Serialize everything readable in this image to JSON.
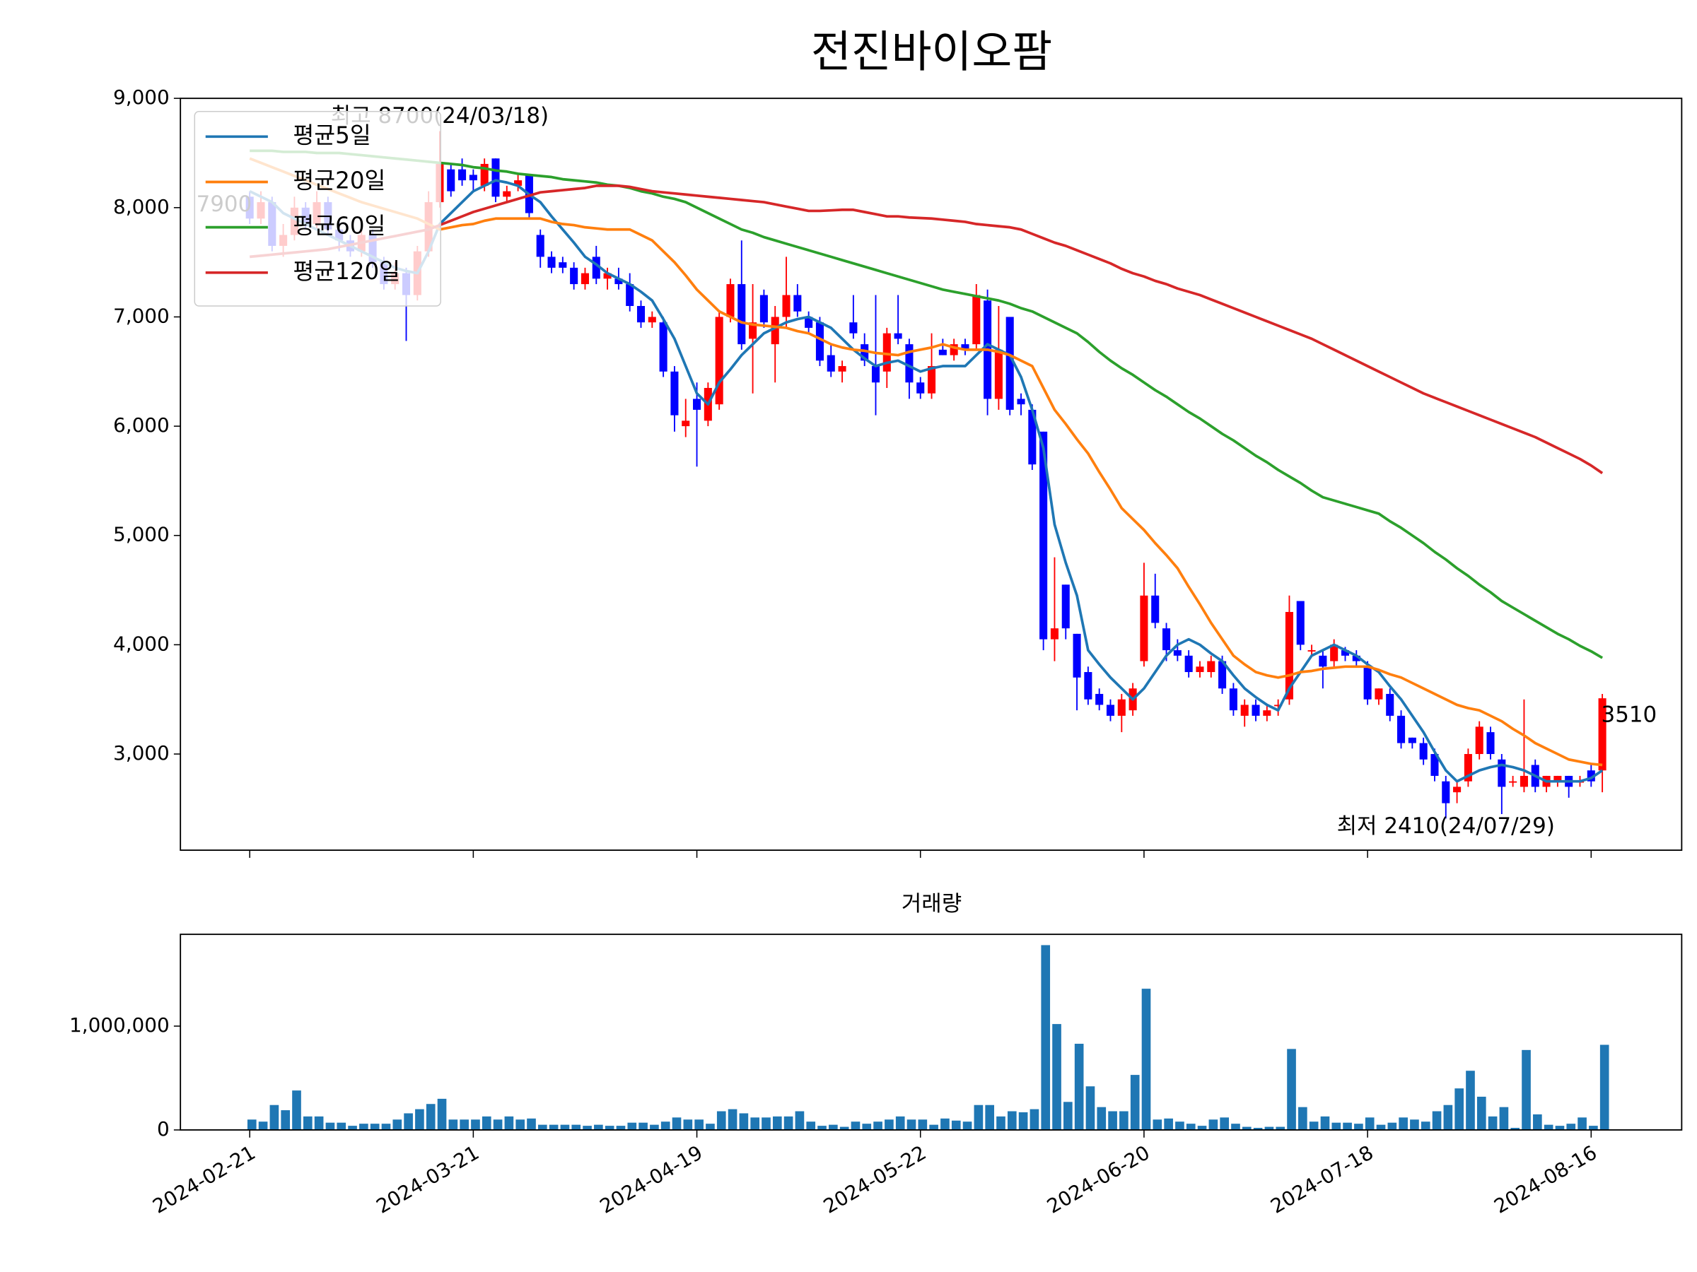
{
  "chart_data": {
    "type": "candlestick",
    "title": "전진바이오팜",
    "categories": [
      "2024-02-21",
      null,
      null,
      null,
      null,
      null,
      null,
      null,
      null,
      null,
      null,
      null,
      null,
      null,
      null,
      null,
      null,
      null,
      null,
      null,
      "2024-03-21",
      null,
      null,
      null,
      null,
      null,
      null,
      null,
      null,
      null,
      null,
      null,
      null,
      null,
      null,
      null,
      null,
      null,
      null,
      null,
      "2024-04-19",
      null,
      null,
      null,
      null,
      null,
      null,
      null,
      null,
      null,
      null,
      null,
      null,
      null,
      null,
      null,
      null,
      null,
      null,
      null,
      "2024-05-22",
      null,
      null,
      null,
      null,
      null,
      null,
      null,
      null,
      null,
      null,
      null,
      null,
      null,
      null,
      null,
      null,
      null,
      null,
      null,
      "2024-06-20",
      null,
      null,
      null,
      null,
      null,
      null,
      null,
      null,
      null,
      null,
      null,
      null,
      null,
      null,
      null,
      null,
      null,
      null,
      null,
      "2024-07-18",
      null,
      null,
      null,
      null,
      null,
      null,
      null,
      null,
      null,
      null,
      null,
      null,
      null,
      null,
      null,
      null,
      null,
      null,
      null,
      "2024-08-16",
      null
    ],
    "open": [
      8100,
      7900,
      8050,
      7650,
      7750,
      8000,
      7850,
      8050,
      7800,
      7700,
      7600,
      7750,
      7500,
      7300,
      7400,
      7200,
      7600,
      8050,
      8350,
      8350,
      8300,
      8200,
      8450,
      8100,
      8200,
      8300,
      7750,
      7550,
      7500,
      7450,
      7300,
      7550,
      7350,
      7350,
      7300,
      7100,
      6950,
      6950,
      6500,
      6000,
      6250,
      6050,
      6200,
      7000,
      7300,
      6800,
      7200,
      6750,
      7000,
      7200,
      7000,
      6950,
      6650,
      6500,
      6950,
      6750,
      6550,
      6500,
      6850,
      6750,
      6400,
      6300,
      6700,
      6650,
      6750,
      6750,
      7150,
      6250,
      7000,
      6250,
      6150,
      5950,
      4050,
      4550,
      4100,
      3750,
      3550,
      3450,
      3350,
      3400,
      3850,
      4450,
      4150,
      3950,
      3900,
      3750,
      3750,
      3850,
      3600,
      3350,
      3450,
      3350,
      3450,
      3500,
      4400,
      3950,
      3900,
      3850,
      3950,
      3900,
      3800,
      3500,
      3550,
      3350,
      3150,
      3100,
      3000,
      2750,
      2650,
      2750,
      3000,
      3200,
      2950,
      2750,
      2700,
      2900,
      2700,
      2750,
      2800,
      2750,
      2850,
      2850
    ],
    "high": [
      8150,
      8150,
      8100,
      7850,
      8100,
      8050,
      8150,
      8100,
      7900,
      7750,
      7850,
      7800,
      7550,
      7500,
      7450,
      7650,
      8150,
      8700,
      8400,
      8450,
      8350,
      8450,
      8450,
      8200,
      8300,
      8300,
      7800,
      7600,
      7550,
      7500,
      7450,
      7650,
      7450,
      7450,
      7400,
      7150,
      7050,
      7000,
      6550,
      6250,
      6400,
      6400,
      7050,
      7350,
      7700,
      7300,
      7250,
      7100,
      7550,
      7300,
      7050,
      7000,
      6750,
      6600,
      7200,
      6850,
      7200,
      6900,
      7200,
      6800,
      6450,
      6850,
      6800,
      6800,
      6800,
      7300,
      7250,
      7100,
      7000,
      6300,
      6200,
      5950,
      4800,
      4550,
      4100,
      3800,
      3600,
      3500,
      3550,
      3650,
      4750,
      4650,
      4200,
      4050,
      3950,
      3850,
      3900,
      3900,
      3650,
      3500,
      3500,
      3450,
      3500,
      4450,
      4400,
      4000,
      3950,
      4050,
      3980,
      3950,
      3850,
      3600,
      3600,
      3400,
      3150,
      3150,
      3050,
      2800,
      2750,
      3050,
      3300,
      3250,
      3000,
      2800,
      3500,
      2950,
      2800,
      2800,
      2800,
      2800,
      2900,
      3550
    ],
    "low": [
      7850,
      7850,
      7600,
      7550,
      7700,
      7800,
      7800,
      7750,
      7600,
      7550,
      7550,
      7450,
      7250,
      7250,
      6780,
      7150,
      7550,
      8000,
      8100,
      8200,
      8150,
      8150,
      8050,
      8050,
      8150,
      7900,
      7450,
      7400,
      7400,
      7250,
      7250,
      7300,
      7250,
      7250,
      7050,
      6900,
      6900,
      6450,
      5950,
      5900,
      5630,
      6000,
      6150,
      6950,
      6700,
      6300,
      6900,
      6400,
      6900,
      7000,
      6850,
      6550,
      6450,
      6400,
      6800,
      6550,
      6100,
      6350,
      6750,
      6250,
      6250,
      6250,
      6650,
      6600,
      6650,
      6700,
      6100,
      6150,
      6100,
      6100,
      5600,
      3950,
      3850,
      4050,
      3400,
      3450,
      3400,
      3300,
      3200,
      3350,
      3800,
      4150,
      3850,
      3850,
      3700,
      3700,
      3700,
      3550,
      3350,
      3250,
      3300,
      3300,
      3350,
      3450,
      3950,
      3900,
      3600,
      3800,
      3850,
      3800,
      3450,
      3450,
      3300,
      3050,
      3050,
      2900,
      2750,
      2410,
      2550,
      2700,
      2950,
      2950,
      2450,
      2700,
      2650,
      2650,
      2650,
      2700,
      2600,
      2700,
      2700,
      2650
    ],
    "close": [
      7900,
      8050,
      7650,
      7750,
      8000,
      7850,
      8050,
      7800,
      7700,
      7600,
      7750,
      7500,
      7300,
      7400,
      7200,
      7600,
      8050,
      8400,
      8150,
      8250,
      8250,
      8400,
      8100,
      8150,
      8250,
      7950,
      7550,
      7450,
      7450,
      7300,
      7400,
      7350,
      7400,
      7300,
      7100,
      6950,
      7000,
      6500,
      6100,
      6050,
      6150,
      6350,
      7000,
      7300,
      6750,
      6950,
      6950,
      7000,
      7200,
      7050,
      6900,
      6600,
      6500,
      6550,
      6850,
      6600,
      6400,
      6850,
      6800,
      6400,
      6300,
      6550,
      6650,
      6750,
      6700,
      7200,
      6250,
      6700,
      6150,
      6200,
      5650,
      4050,
      4150,
      4150,
      3700,
      3500,
      3450,
      3350,
      3500,
      3600,
      4450,
      4200,
      3950,
      3900,
      3750,
      3800,
      3850,
      3600,
      3400,
      3450,
      3350,
      3400,
      3450,
      4300,
      4000,
      3950,
      3800,
      4000,
      3900,
      3850,
      3500,
      3600,
      3350,
      3100,
      3100,
      2950,
      2800,
      2550,
      2700,
      3000,
      3250,
      3000,
      2700,
      2750,
      2800,
      2700,
      2800,
      2800,
      2700,
      2750,
      2750,
      3510
    ],
    "up_color": "#ff0000",
    "down_color": "#0000ff",
    "series": [
      {
        "name": "평균5일",
        "color": "#1f77b4",
        "values": [
          8150,
          8100,
          8050,
          7950,
          7900,
          7850,
          7800,
          7750,
          7700,
          7650,
          7600,
          7550,
          7500,
          7450,
          7420,
          7400,
          7600,
          7850,
          7950,
          8050,
          8150,
          8200,
          8250,
          8230,
          8200,
          8120,
          8050,
          7920,
          7800,
          7680,
          7550,
          7480,
          7400,
          7350,
          7300,
          7230,
          7150,
          6980,
          6800,
          6550,
          6300,
          6200,
          6400,
          6520,
          6650,
          6750,
          6850,
          6900,
          6950,
          6980,
          7000,
          6950,
          6900,
          6800,
          6700,
          6620,
          6550,
          6580,
          6600,
          6550,
          6500,
          6530,
          6550,
          6550,
          6550,
          6650,
          6750,
          6700,
          6650,
          6450,
          6150,
          5800,
          5100,
          4750,
          4450,
          3950,
          3820,
          3700,
          3600,
          3500,
          3600,
          3750,
          3900,
          4000,
          4050,
          4000,
          3920,
          3850,
          3720,
          3600,
          3520,
          3450,
          3400,
          3600,
          3750,
          3900,
          3950,
          4000,
          3950,
          3900,
          3820,
          3750,
          3620,
          3500,
          3350,
          3200,
          3020,
          2850,
          2750,
          2800,
          2850,
          2880,
          2900,
          2880,
          2850,
          2800,
          2750,
          2750,
          2750,
          2750,
          2780,
          2850
        ]
      },
      {
        "name": "평균20일",
        "color": "#ff7f0e",
        "values": [
          8450,
          8410,
          8370,
          8330,
          8290,
          8250,
          8210,
          8170,
          8130,
          8090,
          8050,
          8020,
          7990,
          7960,
          7930,
          7900,
          7850,
          7800,
          7820,
          7840,
          7850,
          7880,
          7900,
          7900,
          7900,
          7900,
          7900,
          7870,
          7850,
          7840,
          7820,
          7810,
          7800,
          7800,
          7800,
          7750,
          7700,
          7600,
          7500,
          7380,
          7250,
          7150,
          7050,
          7000,
          6950,
          6930,
          6920,
          6910,
          6900,
          6870,
          6850,
          6800,
          6750,
          6720,
          6700,
          6690,
          6670,
          6660,
          6650,
          6680,
          6700,
          6720,
          6750,
          6720,
          6700,
          6700,
          6700,
          6680,
          6650,
          6600,
          6550,
          6350,
          6150,
          6020,
          5880,
          5750,
          5580,
          5420,
          5250,
          5150,
          5050,
          4930,
          4820,
          4700,
          4530,
          4370,
          4200,
          4050,
          3900,
          3820,
          3750,
          3720,
          3700,
          3720,
          3750,
          3760,
          3780,
          3790,
          3800,
          3800,
          3800,
          3770,
          3730,
          3700,
          3650,
          3600,
          3550,
          3500,
          3450,
          3420,
          3400,
          3350,
          3300,
          3230,
          3170,
          3100,
          3050,
          3000,
          2950,
          2930,
          2910,
          2900
        ]
      },
      {
        "name": "평균60일",
        "color": "#2ca02c",
        "values": [
          8520,
          8520,
          8520,
          8510,
          8510,
          8510,
          8500,
          8500,
          8500,
          8490,
          8480,
          8470,
          8460,
          8450,
          8440,
          8430,
          8420,
          8410,
          8400,
          8390,
          8370,
          8360,
          8340,
          8330,
          8310,
          8300,
          8290,
          8280,
          8260,
          8250,
          8240,
          8230,
          8210,
          8200,
          8180,
          8150,
          8130,
          8100,
          8080,
          8050,
          8000,
          7950,
          7900,
          7850,
          7800,
          7770,
          7730,
          7700,
          7670,
          7640,
          7610,
          7580,
          7550,
          7520,
          7490,
          7460,
          7430,
          7400,
          7370,
          7340,
          7310,
          7280,
          7250,
          7230,
          7210,
          7190,
          7170,
          7150,
          7120,
          7080,
          7050,
          7000,
          6950,
          6900,
          6850,
          6770,
          6680,
          6600,
          6530,
          6470,
          6400,
          6330,
          6270,
          6200,
          6130,
          6070,
          6000,
          5930,
          5870,
          5800,
          5730,
          5670,
          5600,
          5540,
          5480,
          5410,
          5350,
          5320,
          5290,
          5260,
          5230,
          5200,
          5130,
          5070,
          5000,
          4930,
          4850,
          4780,
          4700,
          4630,
          4550,
          4480,
          4400,
          4340,
          4280,
          4220,
          4160,
          4100,
          4050,
          3990,
          3940,
          3880
        ]
      },
      {
        "name": "평균120일",
        "color": "#d62728",
        "values": [
          7550,
          7560,
          7570,
          7580,
          7590,
          7600,
          7610,
          7620,
          7640,
          7660,
          7680,
          7700,
          7720,
          7740,
          7760,
          7780,
          7800,
          7840,
          7880,
          7920,
          7960,
          7990,
          8020,
          8050,
          8080,
          8110,
          8140,
          8150,
          8160,
          8170,
          8180,
          8200,
          8200,
          8200,
          8190,
          8170,
          8150,
          8140,
          8130,
          8120,
          8110,
          8100,
          8090,
          8080,
          8070,
          8060,
          8050,
          8030,
          8010,
          7990,
          7970,
          7970,
          7975,
          7980,
          7980,
          7960,
          7940,
          7920,
          7920,
          7910,
          7905,
          7900,
          7890,
          7880,
          7870,
          7850,
          7840,
          7830,
          7820,
          7800,
          7760,
          7720,
          7680,
          7650,
          7610,
          7570,
          7530,
          7490,
          7440,
          7400,
          7370,
          7330,
          7300,
          7260,
          7230,
          7200,
          7160,
          7120,
          7080,
          7040,
          7000,
          6960,
          6920,
          6880,
          6840,
          6800,
          6750,
          6700,
          6650,
          6600,
          6550,
          6500,
          6450,
          6400,
          6350,
          6300,
          6260,
          6220,
          6180,
          6140,
          6100,
          6060,
          6020,
          5980,
          5940,
          5900,
          5850,
          5800,
          5750,
          5700,
          5640,
          5570
        ]
      }
    ],
    "annotations": [
      {
        "text": "최고 8700(24/03/18)",
        "color": "#ff0000"
      },
      {
        "text": "최저 2410(24/07/29)",
        "color": "#0000ff"
      },
      {
        "text": "7900",
        "color": "#000000"
      },
      {
        "text": "3510",
        "color": "#000000"
      }
    ],
    "xlim": [
      -6.2,
      128.1
    ],
    "ylim": [
      2120,
      9000
    ],
    "yticks": [
      {
        "value": 3000,
        "label": "3,000"
      },
      {
        "value": 4000,
        "label": "4,000"
      },
      {
        "value": 5000,
        "label": "5,000"
      },
      {
        "value": 6000,
        "label": "6,000"
      },
      {
        "value": 7000,
        "label": "7,000"
      },
      {
        "value": 8000,
        "label": "8,000"
      },
      {
        "value": 9000,
        "label": "9,000"
      }
    ],
    "legend": "upper left",
    "volume": {
      "title": "거래량",
      "color": "#1f77b4",
      "values": [
        100000,
        80000,
        240000,
        190000,
        380000,
        130000,
        130000,
        70000,
        70000,
        40000,
        60000,
        60000,
        60000,
        100000,
        160000,
        200000,
        250000,
        300000,
        100000,
        100000,
        100000,
        130000,
        100000,
        130000,
        100000,
        110000,
        50000,
        50000,
        50000,
        50000,
        40000,
        50000,
        40000,
        40000,
        70000,
        70000,
        50000,
        80000,
        120000,
        100000,
        100000,
        60000,
        180000,
        200000,
        160000,
        120000,
        120000,
        130000,
        130000,
        180000,
        80000,
        40000,
        50000,
        30000,
        80000,
        60000,
        80000,
        100000,
        130000,
        100000,
        100000,
        50000,
        110000,
        90000,
        80000,
        240000,
        240000,
        130000,
        180000,
        170000,
        200000,
        1780000,
        1020000,
        270000,
        830000,
        420000,
        220000,
        180000,
        180000,
        530000,
        1360000,
        100000,
        110000,
        80000,
        60000,
        40000,
        100000,
        120000,
        60000,
        30000,
        20000,
        30000,
        30000,
        780000,
        220000,
        80000,
        130000,
        70000,
        70000,
        60000,
        120000,
        50000,
        70000,
        120000,
        100000,
        80000,
        180000,
        240000,
        400000,
        570000,
        320000,
        130000,
        220000,
        20000,
        770000,
        150000,
        50000,
        40000,
        60000,
        120000,
        40000,
        820000
      ],
      "ylim": [
        0,
        1884000
      ],
      "yticks": [
        0,
        {
          "value": 1000000,
          "label": "1,000,000"
        }
      ]
    }
  }
}
